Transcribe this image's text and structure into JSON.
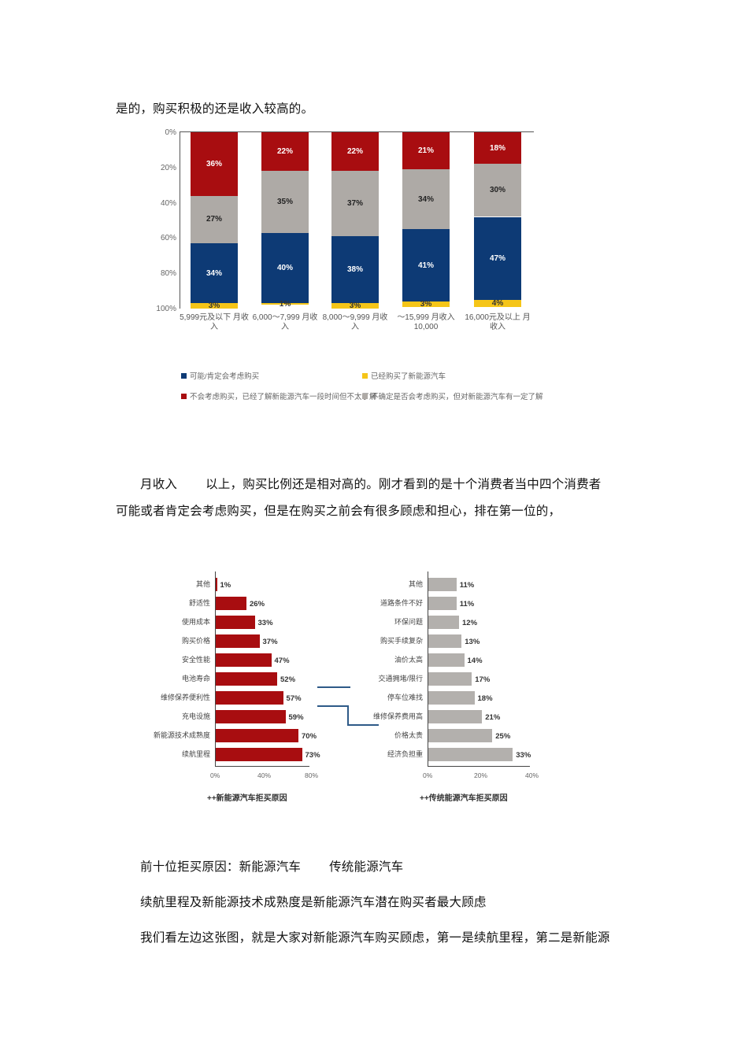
{
  "paragraphs": {
    "p1": "是的，购买积极的还是收入较高的。",
    "p2a": "月收入",
    "p2b": "以上，购买比例还是相对高的。刚才看到的是十个消费者当中四个消费者",
    "p3": "可能或者肯定会考虑购买，但是在购买之前会有很多顾虑和担心，排在第一位的，",
    "p4a": "前十位拒买原因：新能源汽车",
    "p4b": "传统能源汽车",
    "p5": "续航里程及新能源技术成熟度是新能源汽车潜在购买者最大顾虑",
    "p6": "我们看左边这张图，就是大家对新能源汽车购买顾虑，第一是续航里程，第二是新能源"
  },
  "chart_data": [
    {
      "type": "bar",
      "stacked": true,
      "orientation": "vertical",
      "rendered_flipped_vertically": true,
      "title": "",
      "categories": [
        "月收入5,999元及以下",
        "月收入6,000～7,999",
        "月收入8,000～9,999",
        "月收入10,000元到15,999～",
        "月收入16,000元及以上"
      ],
      "category_labels_visible": [
        "5,999元及以下 月收入",
        "6,000～7,999 月收入",
        "8,000～9,999 月收入",
        "～15,999 月收入10,000",
        "16,000元及以上 月收入"
      ],
      "ylim": [
        0,
        100
      ],
      "yticks": [
        "0%",
        "20%",
        "40%",
        "60%",
        "80%",
        "100%"
      ],
      "series": [
        {
          "name": "可能/肯定会考虑购买",
          "color": "#0d3a75",
          "values": [
            34,
            40,
            38,
            41,
            47
          ]
        },
        {
          "name": "已经购买了新能源汽车",
          "color": "#f5c518",
          "values": [
            3,
            1,
            3,
            3,
            4
          ]
        },
        {
          "name": "不会考虑购买，已经了解新能源汽车一段时间但不太了解",
          "color": "#a80d10",
          "values": [
            36,
            22,
            22,
            21,
            18
          ]
        },
        {
          "name": "不确定是否会考虑购买，但对新能源汽车有一定了解",
          "color": "#aeaaa6",
          "values": [
            27,
            35,
            37,
            34,
            30
          ]
        }
      ],
      "legend_position": "bottom",
      "grid": false
    },
    {
      "type": "bar",
      "orientation": "horizontal",
      "rendered_flipped_vertically": true,
      "title": "++新能源汽车拒买原因",
      "color": "#a80d10",
      "categories": [
        "续航里程",
        "新能源技术成熟度",
        "充电设施",
        "维修保养便利性",
        "电池寿命",
        "安全性能",
        "购买价格",
        "使用成本",
        "舒适性",
        "其他"
      ],
      "values": [
        73,
        70,
        59,
        57,
        52,
        47,
        37,
        33,
        26,
        1
      ],
      "xlim": [
        0,
        80
      ],
      "xticks": [
        "0%",
        "40%",
        "80%"
      ]
    },
    {
      "type": "bar",
      "orientation": "horizontal",
      "rendered_flipped_vertically": true,
      "title": "++传统能源汽车拒买原因",
      "color": "#b3b0ad",
      "categories": [
        "经济负担重",
        "价格太贵",
        "维修保养费用高",
        "停车位难找",
        "交通拥堵/限行",
        "油价太高",
        "购买手续复杂",
        "环保问题",
        "道路条件不好",
        "其他"
      ],
      "values": [
        33,
        25,
        21,
        18,
        17,
        14,
        13,
        12,
        11,
        11
      ],
      "xlim": [
        0,
        40
      ],
      "xticks": [
        "0%",
        "20%",
        "40%"
      ]
    }
  ]
}
